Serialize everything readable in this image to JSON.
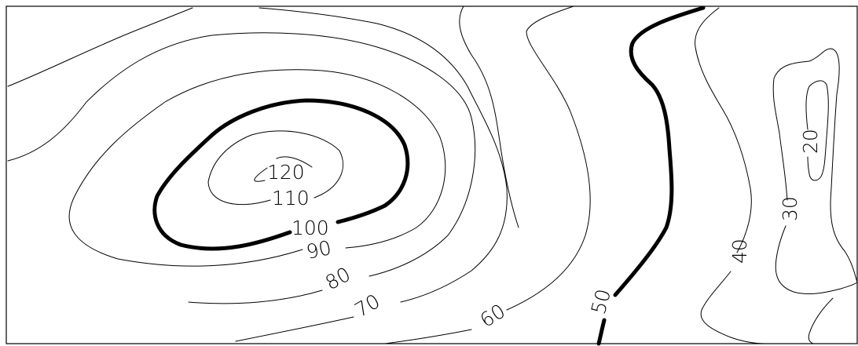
{
  "contour_map": {
    "labels": {
      "c120": "120",
      "c110": "110",
      "c100": "100",
      "c90": "90",
      "c80": "80",
      "c70": "70",
      "c60": "60",
      "c50": "50",
      "c40": "40",
      "c30": "30",
      "c20": "20"
    },
    "index_contours": [
      "100",
      "50"
    ]
  }
}
